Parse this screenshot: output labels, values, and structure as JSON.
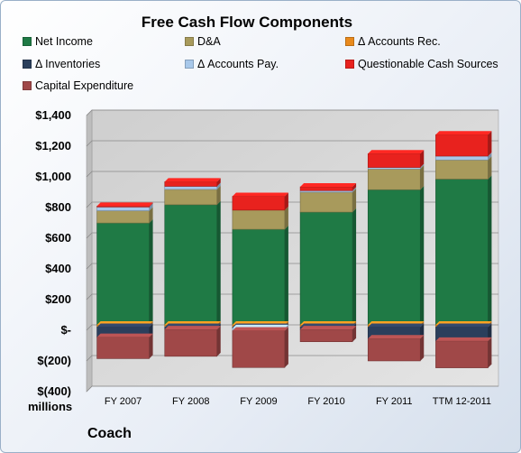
{
  "chart_data": {
    "type": "bar",
    "stacked": true,
    "title": "Free Cash Flow Components",
    "units_label": "millions",
    "company": "Coach",
    "categories": [
      "FY 2007",
      "FY 2008",
      "FY 2009",
      "FY 2010",
      "FY 2011",
      "TTM 12-2011"
    ],
    "ylim": [
      -400,
      1400
    ],
    "yticks": [
      1400,
      1200,
      1000,
      800,
      600,
      400,
      200,
      0,
      -200,
      -400
    ],
    "ytick_labels": [
      "$1,400",
      "$1,200",
      "$1,000",
      "$800",
      "$600",
      "$400",
      "$200",
      "$-",
      "$(200)",
      "$(400)"
    ],
    "grid": true,
    "legend_position": "top",
    "series": [
      {
        "name": "Net Income",
        "color": "#1f7a45",
        "values": [
          664,
          783,
          623,
          735,
          881,
          950
        ]
      },
      {
        "name": "D&A",
        "color": "#a89a5c",
        "values": [
          80,
          100,
          125,
          130,
          135,
          125
        ]
      },
      {
        "name": "Δ Accounts Rec.",
        "color": "#e98a1c",
        "values": [
          -15,
          -15,
          -15,
          -15,
          -15,
          -15
        ]
      },
      {
        "name": "Δ Inventories",
        "color": "#2b3f5c",
        "values": [
          -65,
          -15,
          -8,
          -15,
          -75,
          -90
        ]
      },
      {
        "name": "Δ Accounts Pay.",
        "color": "#a8c8ea",
        "values": [
          25,
          20,
          -15,
          10,
          10,
          25
        ]
      },
      {
        "name": "Questionable Cash Sources",
        "color": "#e8221e",
        "values": [
          5,
          30,
          90,
          25,
          90,
          140
        ]
      },
      {
        "name": "Capital Expenditure",
        "color": "#a04848",
        "values": [
          -140,
          -175,
          -240,
          -80,
          -145,
          -175
        ]
      }
    ]
  }
}
